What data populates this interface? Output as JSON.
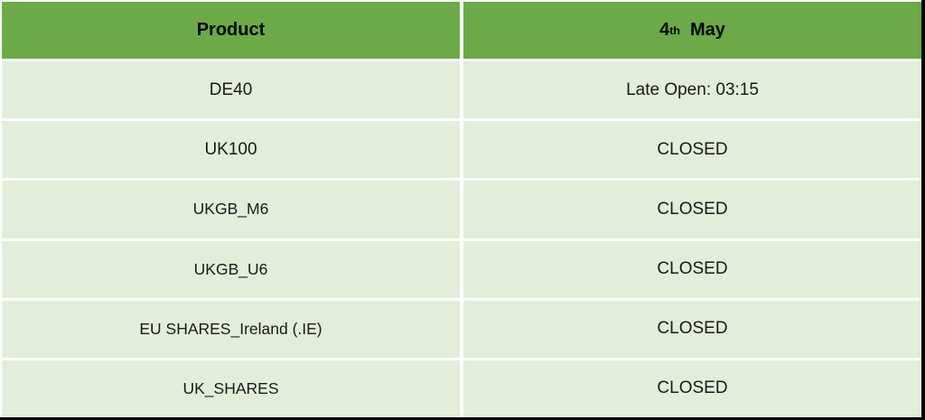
{
  "colors": {
    "header_bg": "#6BAA47",
    "row_bg": "#E2EEDA",
    "gap": "#FFFFFF",
    "edge": "#000000",
    "text": "#1A1A1A"
  },
  "table": {
    "header": {
      "product_label": "Product",
      "date_day": "4",
      "date_ordinal": "th",
      "date_month": "May"
    },
    "rows": [
      {
        "product": "DE40",
        "status": "Late Open: 03:15"
      },
      {
        "product": "UK100",
        "status": "CLOSED"
      },
      {
        "product": "UKGB_M6",
        "status": "CLOSED"
      },
      {
        "product": "UKGB_U6",
        "status": "CLOSED"
      },
      {
        "product": "EU SHARES_Ireland (.IE)",
        "status": "CLOSED"
      },
      {
        "product": "UK_SHARES",
        "status": "CLOSED"
      }
    ]
  }
}
